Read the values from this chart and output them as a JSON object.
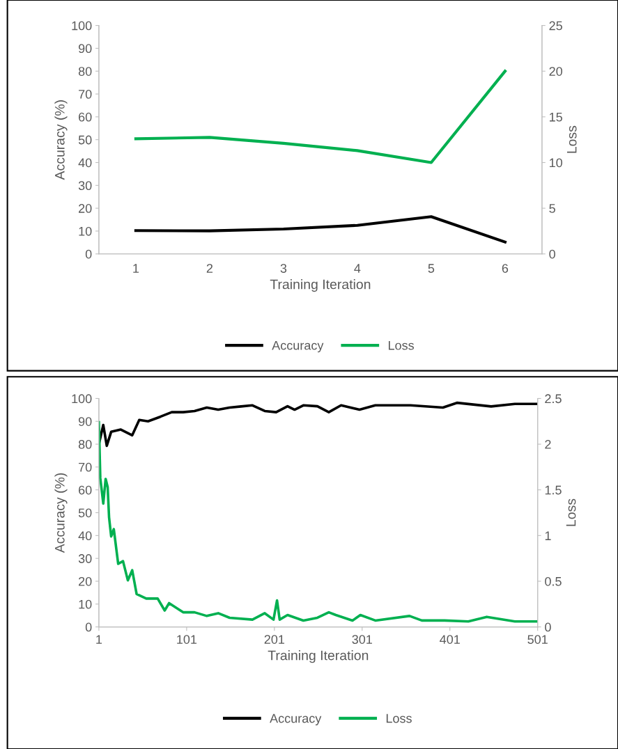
{
  "chart_data": [
    {
      "type": "line",
      "categories": [
        "1",
        "2",
        "3",
        "4",
        "5",
        "6"
      ],
      "xlabel": "Training Iteration",
      "ylabel": "Accuracy (%)",
      "y2label": "Loss",
      "ylim": [
        0,
        100
      ],
      "yticks": [
        0,
        10,
        20,
        30,
        40,
        50,
        60,
        70,
        80,
        90,
        100
      ],
      "y2lim": [
        0,
        25
      ],
      "y2ticks": [
        0,
        5,
        10,
        15,
        20,
        25
      ],
      "legend": "bottom",
      "grid": false,
      "marker": "none",
      "line_style": "solid",
      "series": [
        {
          "name": "Accuracy",
          "color": "#000000",
          "values": [
            10.2,
            10.1,
            10.9,
            12.5,
            16.3,
            5.2
          ]
        },
        {
          "name": "Loss",
          "color": "#00b050",
          "axis": "y2",
          "values": [
            12.6,
            12.75,
            12.1,
            11.3,
            10.0,
            20.0
          ]
        }
      ]
    },
    {
      "type": "line",
      "xlabel": "Training Iteration",
      "ylabel": "Accuracy (%)",
      "y2label": "Loss",
      "xlim": [
        1,
        501
      ],
      "xticks": [
        1,
        101,
        201,
        301,
        401,
        501
      ],
      "ylim": [
        0,
        100
      ],
      "yticks": [
        0,
        10,
        20,
        30,
        40,
        50,
        60,
        70,
        80,
        90,
        100
      ],
      "y2lim": [
        0,
        2.5
      ],
      "y2ticks": [
        0,
        0.5,
        1,
        1.5,
        2,
        2.5
      ],
      "legend": "bottom",
      "grid": false,
      "marker": "none",
      "line_style": "solid",
      "series": [
        {
          "name": "Accuracy",
          "color": "#000000",
          "x": [
            1,
            6,
            10,
            15,
            26,
            39,
            47,
            57,
            71,
            84,
            97,
            110,
            124,
            137,
            150,
            163,
            176,
            190,
            203,
            216,
            224,
            234,
            250,
            263,
            277,
            298,
            316,
            356,
            393,
            409,
            448,
            475,
            500
          ],
          "values": [
            80,
            88.4,
            79.3,
            85.4,
            86.4,
            83.9,
            90.6,
            90,
            92,
            94,
            94,
            94.5,
            96,
            95.1,
            96,
            96.5,
            97,
            94.5,
            94,
            96.6,
            95.1,
            97,
            96.6,
            94,
            97,
            95.1,
            97,
            97,
            96,
            98.1,
            96.5,
            97.6,
            97.6
          ]
        },
        {
          "name": "Loss",
          "color": "#00b050",
          "axis": "y2",
          "x": [
            1,
            2.6,
            6,
            8.7,
            11,
            12.6,
            15,
            18,
            23,
            28.5,
            34,
            39,
            44,
            55,
            68,
            76,
            81,
            97,
            110,
            124,
            137,
            150,
            176,
            190,
            200,
            204,
            207,
            216,
            234,
            250,
            263,
            271,
            290,
            299,
            316,
            355,
            369,
            395,
            422,
            443,
            475,
            500
          ],
          "values": [
            2.24,
            1.63,
            1.35,
            1.62,
            1.53,
            1.2,
            0.99,
            1.07,
            0.69,
            0.72,
            0.51,
            0.62,
            0.36,
            0.31,
            0.31,
            0.18,
            0.26,
            0.16,
            0.16,
            0.12,
            0.15,
            0.1,
            0.08,
            0.15,
            0.08,
            0.29,
            0.08,
            0.13,
            0.07,
            0.1,
            0.16,
            0.13,
            0.07,
            0.13,
            0.07,
            0.12,
            0.07,
            0.07,
            0.06,
            0.11,
            0.06,
            0.06
          ]
        }
      ]
    }
  ]
}
